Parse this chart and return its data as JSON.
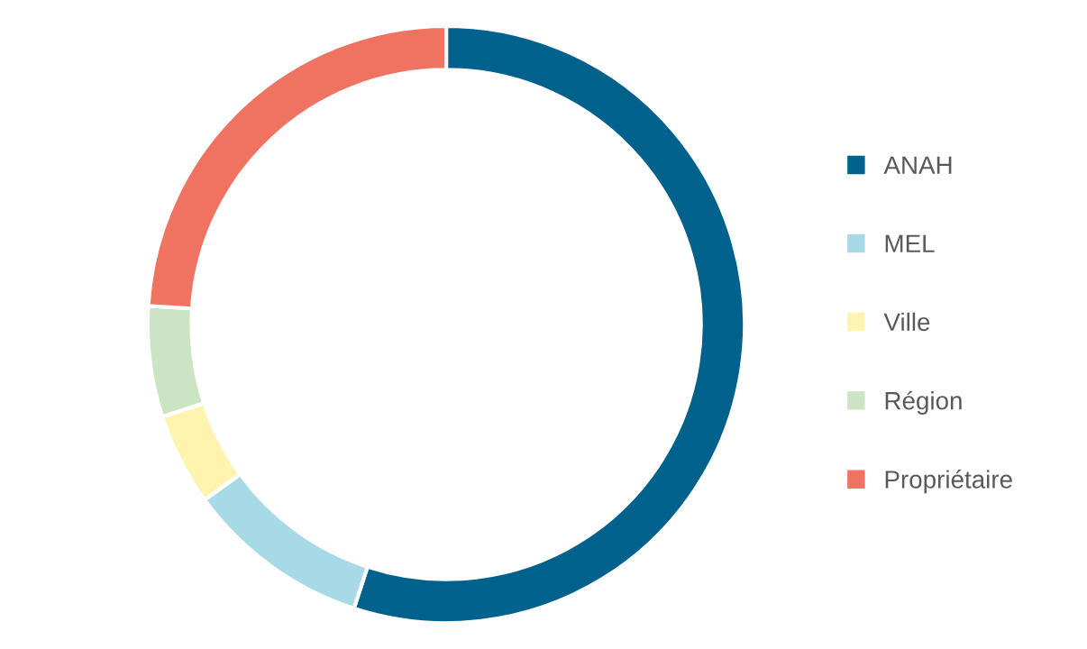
{
  "chart_data": {
    "type": "donut",
    "categories": [
      "ANAH",
      "MEL",
      "Ville",
      "Région",
      "Propriétaire"
    ],
    "values": [
      55,
      10,
      5,
      6,
      24
    ],
    "colors": [
      "#00628c",
      "#a7d9e6",
      "#fff3b0",
      "#cbe4c3",
      "#f07261"
    ],
    "legend": "right"
  }
}
